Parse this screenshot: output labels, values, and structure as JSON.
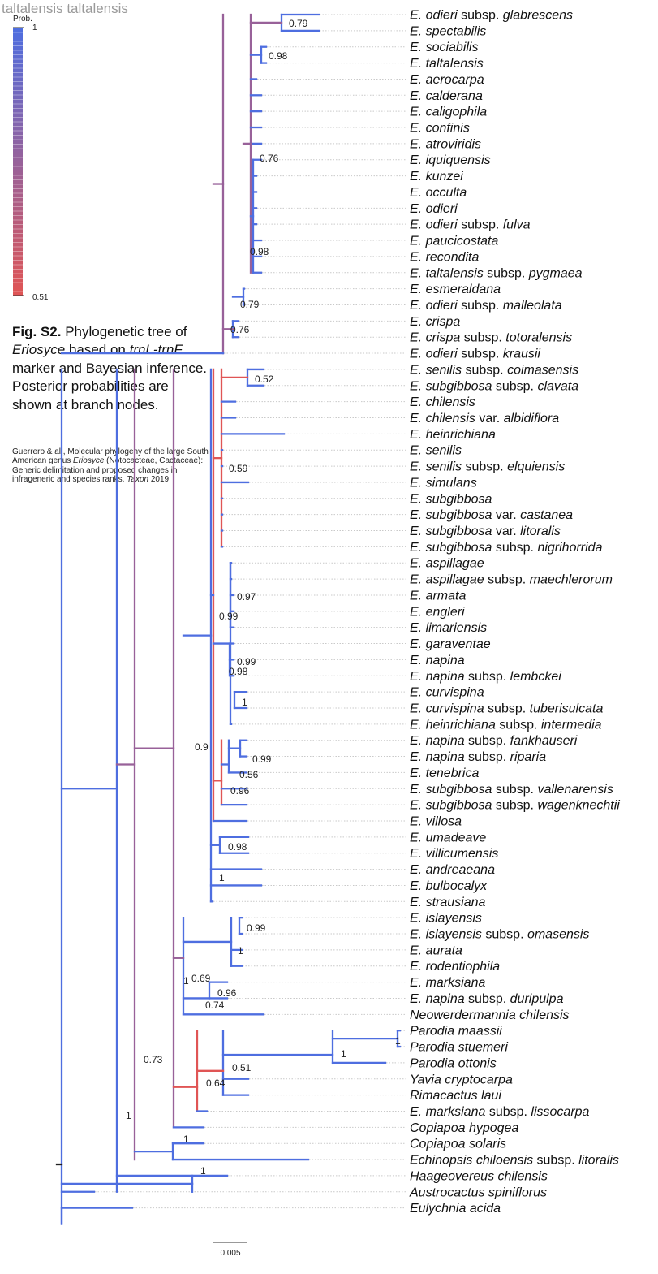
{
  "header": {
    "node_label": "taltalensis taltalensis"
  },
  "legend": {
    "title": "Prob.",
    "max_label": "1",
    "min_label": "0.51",
    "high_color": "#4e6ee0",
    "low_color": "#e05555"
  },
  "caption": {
    "fig_label": "Fig. S2.",
    "text_1": " Phylogenetic tree of ",
    "genus": "Eriosyce",
    "text_2": " based on ",
    "marker": "trnL-trnF",
    "text_3": " marker and Bayesian inference. Posterior probabilities are shown at branch nodes."
  },
  "citation": {
    "text_1": "Guerrero & al., Molecular phylogeny of the large South American genus ",
    "genus": "Eriosyce",
    "text_2": " (Notocacteae, Cactaceae): Generic delimitation and proposed changes in infrageneric and species ranks. ",
    "journal": "Taxon",
    "text_3": " 2019"
  },
  "scale_bar": {
    "label": "0.005"
  },
  "taxa": [
    {
      "name": "E. odieri subsp. glabrescens",
      "parts": [
        {
          "t": "E. odieri",
          "i": true
        },
        {
          "t": " subsp. ",
          "i": false
        },
        {
          "t": "glabrescens",
          "i": true
        }
      ]
    },
    {
      "name": "E. spectabilis",
      "parts": [
        {
          "t": "E. spectabilis",
          "i": true
        }
      ]
    },
    {
      "name": "E. sociabilis",
      "parts": [
        {
          "t": "E. sociabilis",
          "i": true
        }
      ]
    },
    {
      "name": "E. taltalensis",
      "parts": [
        {
          "t": "E. taltalensis",
          "i": true
        }
      ]
    },
    {
      "name": "E. aerocarpa",
      "parts": [
        {
          "t": "E. aerocarpa",
          "i": true
        }
      ]
    },
    {
      "name": "E. calderana",
      "parts": [
        {
          "t": "E. calderana",
          "i": true
        }
      ]
    },
    {
      "name": "E. caligophila",
      "parts": [
        {
          "t": "E. caligophila",
          "i": true
        }
      ]
    },
    {
      "name": "E. confinis",
      "parts": [
        {
          "t": "E. confinis",
          "i": true
        }
      ]
    },
    {
      "name": "E. atroviridis",
      "parts": [
        {
          "t": "E. atroviridis",
          "i": true
        }
      ]
    },
    {
      "name": "E. iquiquensis",
      "parts": [
        {
          "t": "E. iquiquensis",
          "i": true
        }
      ]
    },
    {
      "name": "E. kunzei",
      "parts": [
        {
          "t": "E. kunzei",
          "i": true
        }
      ]
    },
    {
      "name": "E. occulta",
      "parts": [
        {
          "t": "E. occulta",
          "i": true
        }
      ]
    },
    {
      "name": "E. odieri",
      "parts": [
        {
          "t": "E. odieri",
          "i": true
        }
      ]
    },
    {
      "name": "E. odieri subsp. fulva",
      "parts": [
        {
          "t": "E. odieri",
          "i": true
        },
        {
          "t": " subsp. ",
          "i": false
        },
        {
          "t": "fulva",
          "i": true
        }
      ]
    },
    {
      "name": "E. paucicostata",
      "parts": [
        {
          "t": "E. paucicostata",
          "i": true
        }
      ]
    },
    {
      "name": "E. recondita",
      "parts": [
        {
          "t": "E. recondita",
          "i": true
        }
      ]
    },
    {
      "name": "E. taltalensis subsp. pygmaea",
      "parts": [
        {
          "t": "E. taltalensis",
          "i": true
        },
        {
          "t": " subsp. ",
          "i": false
        },
        {
          "t": "pygmaea",
          "i": true
        }
      ]
    },
    {
      "name": "E. esmeraldana",
      "parts": [
        {
          "t": "E. esmeraldana",
          "i": true
        }
      ]
    },
    {
      "name": "E. odieri subsp. malleolata",
      "parts": [
        {
          "t": "E. odieri",
          "i": true
        },
        {
          "t": " subsp. ",
          "i": false
        },
        {
          "t": "malleolata",
          "i": true
        }
      ]
    },
    {
      "name": "E. crispa",
      "parts": [
        {
          "t": "E. crispa",
          "i": true
        }
      ]
    },
    {
      "name": "E. crispa subsp. totoralensis",
      "parts": [
        {
          "t": "E. crispa",
          "i": true
        },
        {
          "t": " subsp. ",
          "i": false
        },
        {
          "t": "totoralensis",
          "i": true
        }
      ]
    },
    {
      "name": "E. odieri subsp. krausii",
      "parts": [
        {
          "t": "E. odieri",
          "i": true
        },
        {
          "t": " subsp. ",
          "i": false
        },
        {
          "t": "krausii",
          "i": true
        }
      ]
    },
    {
      "name": "E. senilis subsp. coimasensis",
      "parts": [
        {
          "t": "E. senilis",
          "i": true
        },
        {
          "t": " subsp. ",
          "i": false
        },
        {
          "t": "coimasensis",
          "i": true
        }
      ]
    },
    {
      "name": "E. subgibbosa subsp. clavata",
      "parts": [
        {
          "t": "E. subgibbosa",
          "i": true
        },
        {
          "t": " subsp. ",
          "i": false
        },
        {
          "t": "clavata",
          "i": true
        }
      ]
    },
    {
      "name": "E. chilensis",
      "parts": [
        {
          "t": "E. chilensis",
          "i": true
        }
      ]
    },
    {
      "name": "E. chilensis var. albidiflora",
      "parts": [
        {
          "t": "E. chilensis",
          "i": true
        },
        {
          "t": " var. ",
          "i": false
        },
        {
          "t": "albidiflora",
          "i": true
        }
      ]
    },
    {
      "name": "E. heinrichiana",
      "parts": [
        {
          "t": "E. heinrichiana",
          "i": true
        }
      ]
    },
    {
      "name": "E. senilis",
      "parts": [
        {
          "t": "E. senilis",
          "i": true
        }
      ]
    },
    {
      "name": "E. senilis subsp. elquiensis",
      "parts": [
        {
          "t": "E. senilis",
          "i": true
        },
        {
          "t": " subsp. ",
          "i": false
        },
        {
          "t": "elquiensis",
          "i": true
        }
      ]
    },
    {
      "name": "E. simulans",
      "parts": [
        {
          "t": "E. simulans",
          "i": true
        }
      ]
    },
    {
      "name": "E. subgibbosa",
      "parts": [
        {
          "t": "E. subgibbosa",
          "i": true
        }
      ]
    },
    {
      "name": "E. subgibbosa var. castanea",
      "parts": [
        {
          "t": "E. subgibbosa",
          "i": true
        },
        {
          "t": " var. ",
          "i": false
        },
        {
          "t": "castanea",
          "i": true
        }
      ]
    },
    {
      "name": "E. subgibbosa var. litoralis",
      "parts": [
        {
          "t": "E. subgibbosa",
          "i": true
        },
        {
          "t": " var. ",
          "i": false
        },
        {
          "t": "litoralis",
          "i": true
        }
      ]
    },
    {
      "name": "E. subgibbosa subsp. nigrihorrida",
      "parts": [
        {
          "t": "E. subgibbosa",
          "i": true
        },
        {
          "t": " subsp. ",
          "i": false
        },
        {
          "t": "nigrihorrida",
          "i": true
        }
      ]
    },
    {
      "name": "E. aspillagae",
      "parts": [
        {
          "t": "E. aspillagae",
          "i": true
        }
      ]
    },
    {
      "name": "E. aspillagae subsp. maechlerorum",
      "parts": [
        {
          "t": "E. aspillagae",
          "i": true
        },
        {
          "t": " subsp. ",
          "i": false
        },
        {
          "t": "maechlerorum",
          "i": true
        }
      ]
    },
    {
      "name": "E. armata",
      "parts": [
        {
          "t": "E. armata",
          "i": true
        }
      ]
    },
    {
      "name": "E. engleri",
      "parts": [
        {
          "t": "E. engleri",
          "i": true
        }
      ]
    },
    {
      "name": "E. limariensis",
      "parts": [
        {
          "t": "E. limariensis",
          "i": true
        }
      ]
    },
    {
      "name": "E. garaventae",
      "parts": [
        {
          "t": "E. garaventae",
          "i": true
        }
      ]
    },
    {
      "name": "E. napina",
      "parts": [
        {
          "t": "E. napina",
          "i": true
        }
      ]
    },
    {
      "name": "E. napina subsp. lembckei",
      "parts": [
        {
          "t": "E. napina",
          "i": true
        },
        {
          "t": " subsp. ",
          "i": false
        },
        {
          "t": "lembckei",
          "i": true
        }
      ]
    },
    {
      "name": "E. curvispina",
      "parts": [
        {
          "t": "E. curvispina",
          "i": true
        }
      ]
    },
    {
      "name": "E. curvispina subsp. tuberisulcata",
      "parts": [
        {
          "t": "E. curvispina",
          "i": true
        },
        {
          "t": " subsp. ",
          "i": false
        },
        {
          "t": "tuberisulcata",
          "i": true
        }
      ]
    },
    {
      "name": "E. heinrichiana subsp. intermedia",
      "parts": [
        {
          "t": "E. heinrichiana",
          "i": true
        },
        {
          "t": " subsp. ",
          "i": false
        },
        {
          "t": "intermedia",
          "i": true
        }
      ]
    },
    {
      "name": "E. napina subsp. fankhauseri",
      "parts": [
        {
          "t": "E. napina",
          "i": true
        },
        {
          "t": " subsp. ",
          "i": false
        },
        {
          "t": "fankhauseri",
          "i": true
        }
      ]
    },
    {
      "name": "E. napina subsp. riparia",
      "parts": [
        {
          "t": "E. napina",
          "i": true
        },
        {
          "t": " subsp. ",
          "i": false
        },
        {
          "t": "riparia",
          "i": true
        }
      ]
    },
    {
      "name": "E. tenebrica",
      "parts": [
        {
          "t": "E. tenebrica",
          "i": true
        }
      ]
    },
    {
      "name": "E. subgibbosa subsp. vallenarensis",
      "parts": [
        {
          "t": "E. subgibbosa",
          "i": true
        },
        {
          "t": " subsp. ",
          "i": false
        },
        {
          "t": "vallenarensis",
          "i": true
        }
      ]
    },
    {
      "name": "E. subgibbosa subsp. wagenknechtii",
      "parts": [
        {
          "t": "E. subgibbosa",
          "i": true
        },
        {
          "t": " subsp. ",
          "i": false
        },
        {
          "t": "wagenknechtii",
          "i": true
        }
      ]
    },
    {
      "name": "E. villosa",
      "parts": [
        {
          "t": "E. villosa",
          "i": true
        }
      ]
    },
    {
      "name": "E. umadeave",
      "parts": [
        {
          "t": "E. umadeave",
          "i": true
        }
      ]
    },
    {
      "name": "E. villicumensis",
      "parts": [
        {
          "t": "E. villicumensis",
          "i": true
        }
      ]
    },
    {
      "name": "E. andreaeana",
      "parts": [
        {
          "t": "E. andreaeana",
          "i": true
        }
      ]
    },
    {
      "name": "E. bulbocalyx",
      "parts": [
        {
          "t": "E. bulbocalyx",
          "i": true
        }
      ]
    },
    {
      "name": "E. strausiana",
      "parts": [
        {
          "t": "E. strausiana",
          "i": true
        }
      ]
    },
    {
      "name": "E. islayensis",
      "parts": [
        {
          "t": "E. islayensis",
          "i": true
        }
      ]
    },
    {
      "name": "E. islayensis subsp. omasensis",
      "parts": [
        {
          "t": "E. islayensis",
          "i": true
        },
        {
          "t": " subsp. ",
          "i": false
        },
        {
          "t": "omasensis",
          "i": true
        }
      ]
    },
    {
      "name": "E. aurata",
      "parts": [
        {
          "t": "E. aurata",
          "i": true
        }
      ]
    },
    {
      "name": "E. rodentiophila",
      "parts": [
        {
          "t": "E. rodentiophila",
          "i": true
        }
      ]
    },
    {
      "name": "E. marksiana",
      "parts": [
        {
          "t": "E. marksiana",
          "i": true
        }
      ]
    },
    {
      "name": "E. napina subsp. duripulpa",
      "parts": [
        {
          "t": "E. napina",
          "i": true
        },
        {
          "t": " subsp. ",
          "i": false
        },
        {
          "t": "duripulpa",
          "i": true
        }
      ]
    },
    {
      "name": "Neowerdermannia chilensis",
      "parts": [
        {
          "t": "Neowerdermannia chilensis",
          "i": true
        }
      ]
    },
    {
      "name": "Parodia maassii",
      "parts": [
        {
          "t": "Parodia maassii",
          "i": true
        }
      ]
    },
    {
      "name": "Parodia stuemeri",
      "parts": [
        {
          "t": "Parodia stuemeri",
          "i": true
        }
      ]
    },
    {
      "name": "Parodia ottonis",
      "parts": [
        {
          "t": "Parodia ottonis",
          "i": true
        }
      ]
    },
    {
      "name": "Yavia cryptocarpa",
      "parts": [
        {
          "t": "Yavia cryptocarpa",
          "i": true
        }
      ]
    },
    {
      "name": "Rimacactus laui",
      "parts": [
        {
          "t": "Rimacactus laui",
          "i": true
        }
      ]
    },
    {
      "name": "E. marksiana subsp. lissocarpa",
      "parts": [
        {
          "t": "E. marksiana",
          "i": true
        },
        {
          "t": " subsp. ",
          "i": false
        },
        {
          "t": "lissocarpa",
          "i": true
        }
      ]
    },
    {
      "name": "Copiapoa hypogea",
      "parts": [
        {
          "t": "Copiapoa hypogea",
          "i": true
        }
      ]
    },
    {
      "name": "Copiapoa solaris",
      "parts": [
        {
          "t": "Copiapoa solaris",
          "i": true
        }
      ]
    },
    {
      "name": "Echinopsis chiloensis subsp. litoralis",
      "parts": [
        {
          "t": "Echinopsis chiloensis",
          "i": true
        },
        {
          "t": " subsp. ",
          "i": false
        },
        {
          "t": "litoralis",
          "i": true
        }
      ]
    },
    {
      "name": "Haageovereus chilensis",
      "parts": [
        {
          "t": "Haageovereus chilensis",
          "i": true
        }
      ]
    },
    {
      "name": "Austrocactus spiniflorus",
      "parts": [
        {
          "t": "Austrocactus spiniflorus",
          "i": true
        }
      ]
    },
    {
      "name": "Eulychnia acida",
      "parts": [
        {
          "t": "Eulychnia acida",
          "i": true
        }
      ]
    }
  ],
  "support_values": [
    {
      "label": "0.79",
      "prob": 0.79
    },
    {
      "label": "0.98",
      "prob": 0.98
    },
    {
      "label": "0.76",
      "prob": 0.76
    },
    {
      "label": "0.98",
      "prob": 0.98
    },
    {
      "label": "0.79",
      "prob": 0.79
    },
    {
      "label": "0.76",
      "prob": 0.76
    },
    {
      "label": "0.52",
      "prob": 0.52
    },
    {
      "label": "0.59",
      "prob": 0.59
    },
    {
      "label": "0.97",
      "prob": 0.97
    },
    {
      "label": "0.99",
      "prob": 0.99
    },
    {
      "label": "0.99",
      "prob": 0.99
    },
    {
      "label": "0.98",
      "prob": 0.98
    },
    {
      "label": "1",
      "prob": 1
    },
    {
      "label": "0.99",
      "prob": 0.99
    },
    {
      "label": "0.56",
      "prob": 0.56
    },
    {
      "label": "0.96",
      "prob": 0.96
    },
    {
      "label": "0.9",
      "prob": 0.9
    },
    {
      "label": "0.98",
      "prob": 0.98
    },
    {
      "label": "1",
      "prob": 1
    },
    {
      "label": "0.99",
      "prob": 0.99
    },
    {
      "label": "1",
      "prob": 1
    },
    {
      "label": "1",
      "prob": 1
    },
    {
      "label": "0.69",
      "prob": 0.69
    },
    {
      "label": "0.96",
      "prob": 0.96
    },
    {
      "label": "0.74",
      "prob": 0.74
    },
    {
      "label": "1",
      "prob": 1
    },
    {
      "label": "1",
      "prob": 1
    },
    {
      "label": "0.51",
      "prob": 0.51
    },
    {
      "label": "0.64",
      "prob": 0.64
    },
    {
      "label": "0.73",
      "prob": 0.73
    },
    {
      "label": "1",
      "prob": 1
    },
    {
      "label": "1",
      "prob": 1
    },
    {
      "label": "1",
      "prob": 1
    }
  ]
}
